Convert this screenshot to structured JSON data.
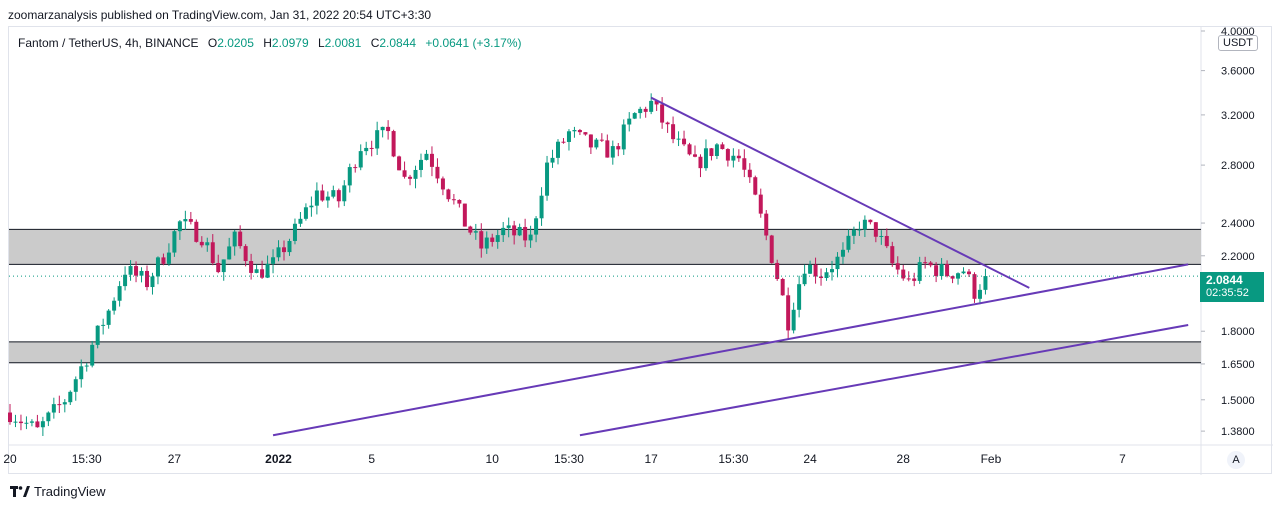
{
  "header": {
    "credit": "zoomarzanalysis published on TradingView.com, Jan 31, 2022 20:54 UTC+3:30"
  },
  "legend": {
    "symbol": "Fantom / TetherUS, 4h, BINANCE",
    "open_label": "O",
    "open": "2.0205",
    "high_label": "H",
    "high": "2.0979",
    "low_label": "L",
    "low": "2.0081",
    "close_label": "C",
    "close": "2.0844",
    "change": "+0.0641 (+3.17%)"
  },
  "axis": {
    "currency": "USDT",
    "auto_label": "A"
  },
  "price_tag": {
    "price": "2.0844",
    "countdown": "02:35:52"
  },
  "footer": {
    "brand": "TradingView"
  },
  "colors": {
    "up": "#089981",
    "down": "#c2185b",
    "line": "#673ab7",
    "zone": "#c8c8c8",
    "tag": "#089981"
  },
  "chart_data": {
    "type": "candlestick",
    "scale": "log",
    "ylim": [
      1.33,
      4.0
    ],
    "y_ticks": [
      {
        "value": 4.0,
        "label": "4.0000"
      },
      {
        "value": 3.6,
        "label": "3.6000"
      },
      {
        "value": 3.2,
        "label": "3.2000"
      },
      {
        "value": 2.8,
        "label": "2.8000"
      },
      {
        "value": 2.4,
        "label": "2.4000"
      },
      {
        "value": 2.2,
        "label": "2.2000"
      },
      {
        "value": 1.8,
        "label": "1.8000"
      },
      {
        "value": 1.65,
        "label": "1.6500"
      },
      {
        "value": 1.5,
        "label": "1.5000"
      },
      {
        "value": 1.38,
        "label": "1.3800"
      }
    ],
    "x_ticks": [
      {
        "t": 0,
        "label": "20",
        "bold": false
      },
      {
        "t": 14,
        "label": "15:30",
        "bold": false
      },
      {
        "t": 30,
        "label": "27",
        "bold": false
      },
      {
        "t": 49,
        "label": "2022",
        "bold": true
      },
      {
        "t": 66,
        "label": "5",
        "bold": false
      },
      {
        "t": 88,
        "label": "10",
        "bold": false
      },
      {
        "t": 102,
        "label": "15:30",
        "bold": false
      },
      {
        "t": 117,
        "label": "17",
        "bold": false
      },
      {
        "t": 132,
        "label": "15:30",
        "bold": false
      },
      {
        "t": 146,
        "label": "24",
        "bold": false
      },
      {
        "t": 163,
        "label": "28",
        "bold": false
      },
      {
        "t": 179,
        "label": "Feb",
        "bold": false
      },
      {
        "t": 203,
        "label": "7",
        "bold": false
      }
    ],
    "zones": [
      {
        "top": 2.36,
        "bottom": 2.15
      },
      {
        "top": 1.75,
        "bottom": 1.655
      }
    ],
    "trendlines": [
      {
        "t1": 117,
        "p1": 3.35,
        "t2": 186,
        "p2": 2.02
      },
      {
        "t1": 48,
        "p1": 1.365,
        "t2": 215,
        "p2": 2.15
      },
      {
        "t1": 104,
        "p1": 1.365,
        "t2": 215,
        "p2": 1.83
      }
    ],
    "last_price": 2.0844,
    "waypoints": [
      [
        0,
        1.45
      ],
      [
        5,
        1.38
      ],
      [
        10,
        1.5
      ],
      [
        14,
        1.68
      ],
      [
        18,
        1.9
      ],
      [
        21,
        2.12
      ],
      [
        25,
        2.05
      ],
      [
        28,
        2.2
      ],
      [
        31,
        2.4
      ],
      [
        35,
        2.32
      ],
      [
        38,
        2.12
      ],
      [
        41,
        2.3
      ],
      [
        45,
        2.1
      ],
      [
        48,
        2.15
      ],
      [
        52,
        2.35
      ],
      [
        56,
        2.6
      ],
      [
        60,
        2.55
      ],
      [
        64,
        2.95
      ],
      [
        69,
        3.05
      ],
      [
        72,
        2.7
      ],
      [
        76,
        2.9
      ],
      [
        80,
        2.6
      ],
      [
        83,
        2.4
      ],
      [
        86,
        2.25
      ],
      [
        90,
        2.35
      ],
      [
        95,
        2.3
      ],
      [
        98,
        2.8
      ],
      [
        102,
        3.05
      ],
      [
        106,
        2.95
      ],
      [
        110,
        2.9
      ],
      [
        114,
        3.2
      ],
      [
        117,
        3.3
      ],
      [
        121,
        3.0
      ],
      [
        125,
        2.8
      ],
      [
        129,
        2.95
      ],
      [
        133,
        2.85
      ],
      [
        136,
        2.55
      ],
      [
        139,
        2.2
      ],
      [
        142,
        1.85
      ],
      [
        145,
        2.15
      ],
      [
        148,
        2.1
      ],
      [
        152,
        2.2
      ],
      [
        155,
        2.4
      ],
      [
        158,
        2.35
      ],
      [
        161,
        2.15
      ],
      [
        164,
        2.05
      ],
      [
        167,
        2.15
      ],
      [
        171,
        2.1
      ],
      [
        174,
        2.12
      ],
      [
        176,
        2.0
      ],
      [
        178,
        2.08
      ]
    ]
  }
}
